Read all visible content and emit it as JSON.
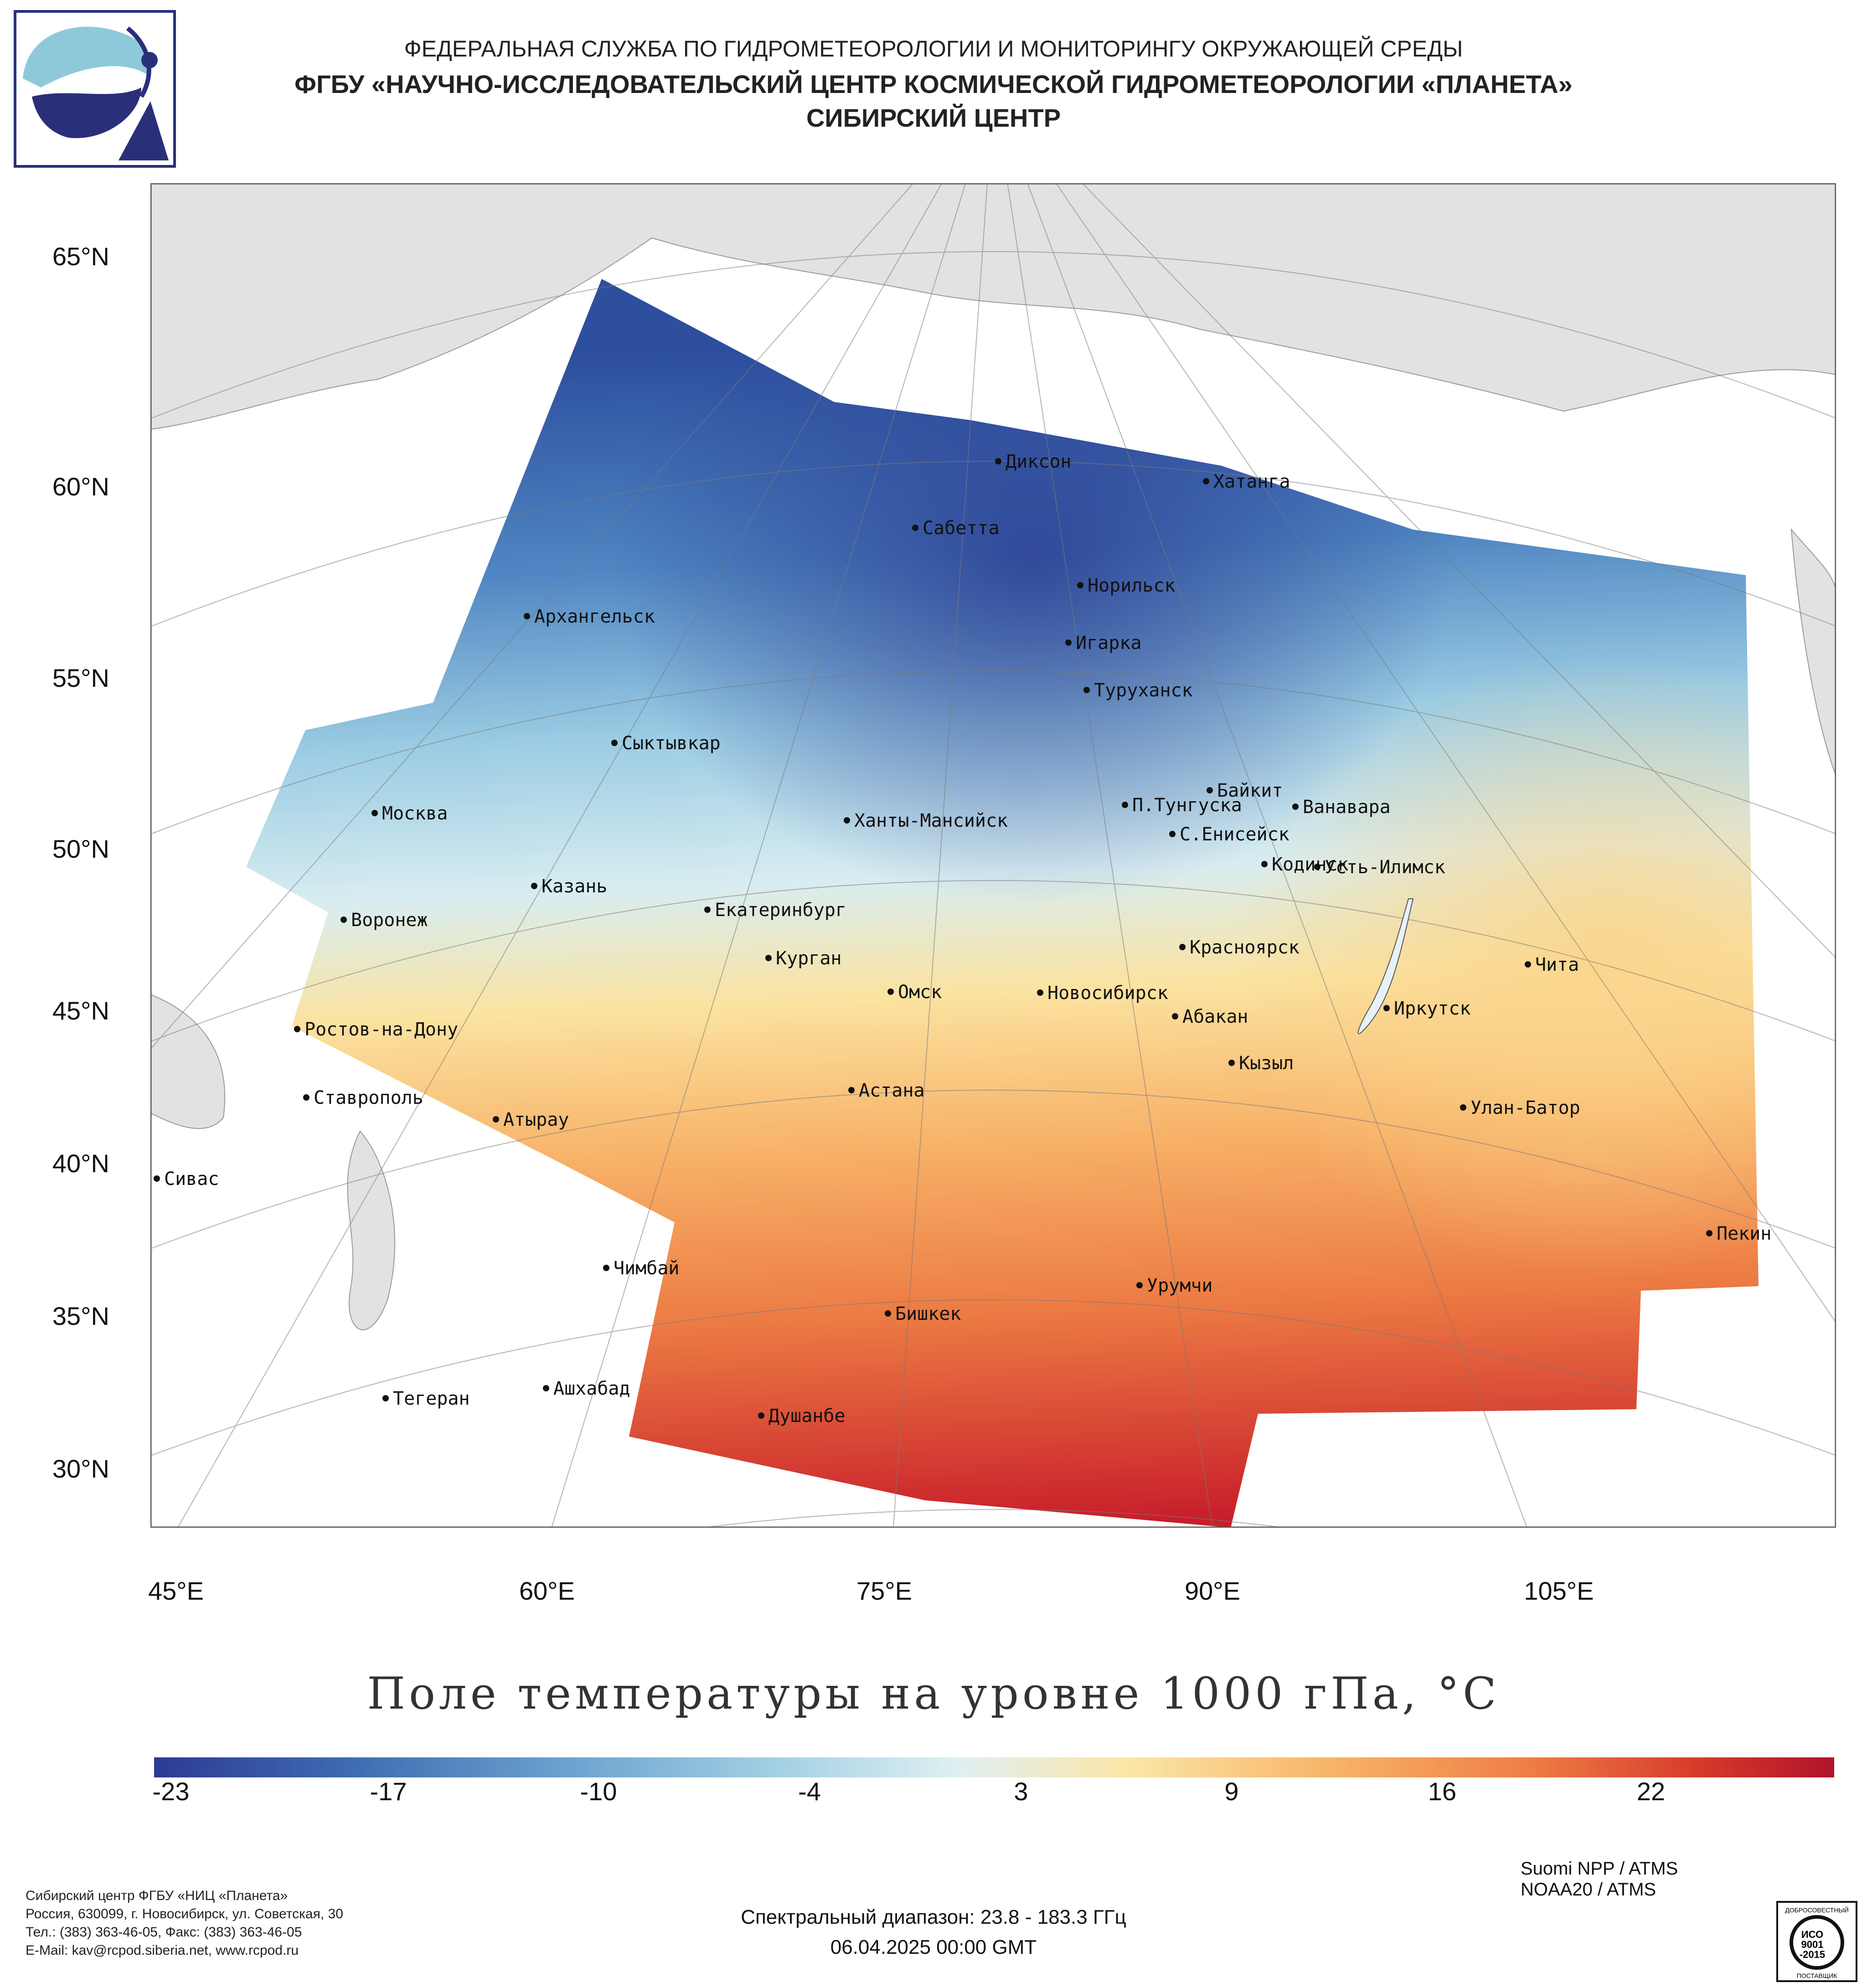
{
  "header": {
    "line1": "ФЕДЕРАЛЬНАЯ СЛУЖБА ПО ГИДРОМЕТЕОРОЛОГИИ И МОНИТОРИНГУ ОКРУЖАЮЩЕЙ СРЕДЫ",
    "line2": "ФГБУ «НАУЧНО-ИССЛЕДОВАТЕЛЬСКИЙ ЦЕНТР КОСМИЧЕСКОЙ ГИДРОМЕТЕОРОЛОГИИ «ПЛАНЕТА»",
    "line3": "СИБИРСКИЙ ЦЕНТР"
  },
  "map": {
    "lat_labels": [
      "65°N",
      "60°N",
      "55°N",
      "50°N",
      "45°N",
      "40°N",
      "35°N",
      "30°N"
    ],
    "lon_labels": [
      "45°E",
      "60°E",
      "75°E",
      "90°E",
      "105°E"
    ],
    "cities": [
      {
        "name": "Диксон"
      },
      {
        "name": "Хатанга"
      },
      {
        "name": "Сабетта"
      },
      {
        "name": "Норильск"
      },
      {
        "name": "Архангельск"
      },
      {
        "name": "Игарка"
      },
      {
        "name": "Туруханск"
      },
      {
        "name": "Сыктывкар"
      },
      {
        "name": "Байкит"
      },
      {
        "name": "Москва"
      },
      {
        "name": "П.Тунгуска"
      },
      {
        "name": "Ванавара"
      },
      {
        "name": "Ханты-Мансийск"
      },
      {
        "name": "С.Енисейск"
      },
      {
        "name": "Кодинск"
      },
      {
        "name": "Усть-Илимск"
      },
      {
        "name": "Казань"
      },
      {
        "name": "Екатеринбург"
      },
      {
        "name": "Воронеж"
      },
      {
        "name": "Красноярск"
      },
      {
        "name": "Курган"
      },
      {
        "name": "Чита"
      },
      {
        "name": "Омск"
      },
      {
        "name": "Новосибирск"
      },
      {
        "name": "Иркутск"
      },
      {
        "name": "Абакан"
      },
      {
        "name": "Ростов-на-Дону"
      },
      {
        "name": "Кызыл"
      },
      {
        "name": "Ставрополь"
      },
      {
        "name": "Астана"
      },
      {
        "name": "Улан-Батор"
      },
      {
        "name": "Атырау"
      },
      {
        "name": "Сивас"
      },
      {
        "name": "Пекин"
      },
      {
        "name": "Чимбай"
      },
      {
        "name": "Урумчи"
      },
      {
        "name": "Бишкек"
      },
      {
        "name": "Ашхабад"
      },
      {
        "name": "Тегеран"
      },
      {
        "name": "Душанбе"
      }
    ]
  },
  "map_title": "Поле температуры на уровне 1000 гПа, °С",
  "colorbar": {
    "ticks": [
      "-23",
      "-17",
      "-10",
      "-4",
      "3",
      "9",
      "16",
      "22"
    ],
    "colors": [
      "#2c3a94",
      "#3f6db3",
      "#6da4cf",
      "#a8d3e6",
      "#e0f0f2",
      "#fbe6a6",
      "#f8b468",
      "#ee7d44",
      "#d63a2a",
      "#b0132b"
    ]
  },
  "footer": {
    "org_lines": [
      "Сибирский центр ФГБУ «НИЦ «Планета»",
      "Россия, 630099, г. Новосибирск, ул. Советская, 30",
      "Тел.: (383) 363-46-05, Факс: (383) 363-46-05",
      "E-Mail: kav@rcpod.siberia.net, www.rcpod.ru"
    ],
    "spectral": "Спектральный диапазон: 23.8 - 183.3 ГГц",
    "datetime": "06.04.2025 00:00 GMT",
    "satellites": [
      "Suomi NPP / ATMS",
      "NOAA20 / ATMS"
    ],
    "cert": {
      "top": "ДОБРОСОВЕСТНЫЙ",
      "iso1": "ИСО",
      "iso2": "9001",
      "iso3": "-2015",
      "bottom": "ПОСТАВЩИК"
    }
  }
}
